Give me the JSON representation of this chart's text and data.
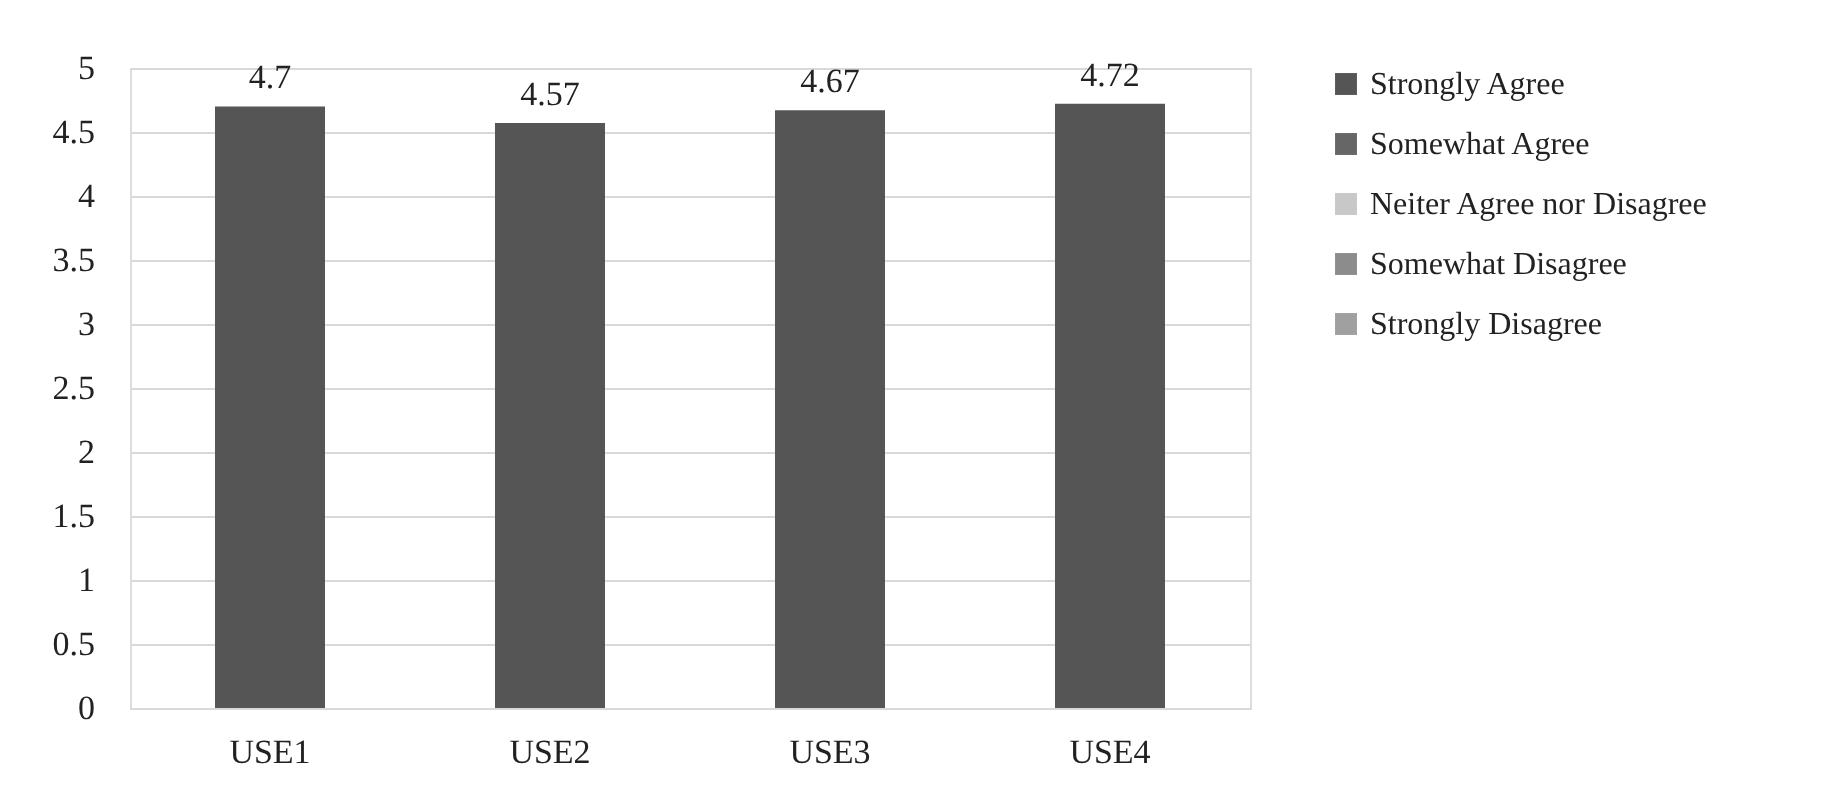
{
  "chart_data": {
    "type": "bar",
    "categories": [
      "USE1",
      "USE2",
      "USE3",
      "USE4"
    ],
    "series": [
      {
        "name": "Strongly Agree",
        "color": "#555555",
        "values": [
          4.7,
          4.57,
          4.67,
          4.72
        ]
      },
      {
        "name": "Somewhat Agree",
        "color": "#666666",
        "values": [
          null,
          null,
          null,
          null
        ]
      },
      {
        "name": "Neiter Agree nor Disagree",
        "color": "#c8c8c8",
        "values": [
          null,
          null,
          null,
          null
        ]
      },
      {
        "name": "Somewhat Disagree",
        "color": "#8c8c8c",
        "values": [
          null,
          null,
          null,
          null
        ]
      },
      {
        "name": "Strongly Disagree",
        "color": "#a0a0a0",
        "values": [
          null,
          null,
          null,
          null
        ]
      }
    ],
    "ylim": [
      0,
      5
    ],
    "yticks": [
      0,
      0.5,
      1,
      1.5,
      2,
      2.5,
      3,
      3.5,
      4,
      4.5,
      5
    ],
    "data_labels": true,
    "grid": "y",
    "legend": "right"
  }
}
